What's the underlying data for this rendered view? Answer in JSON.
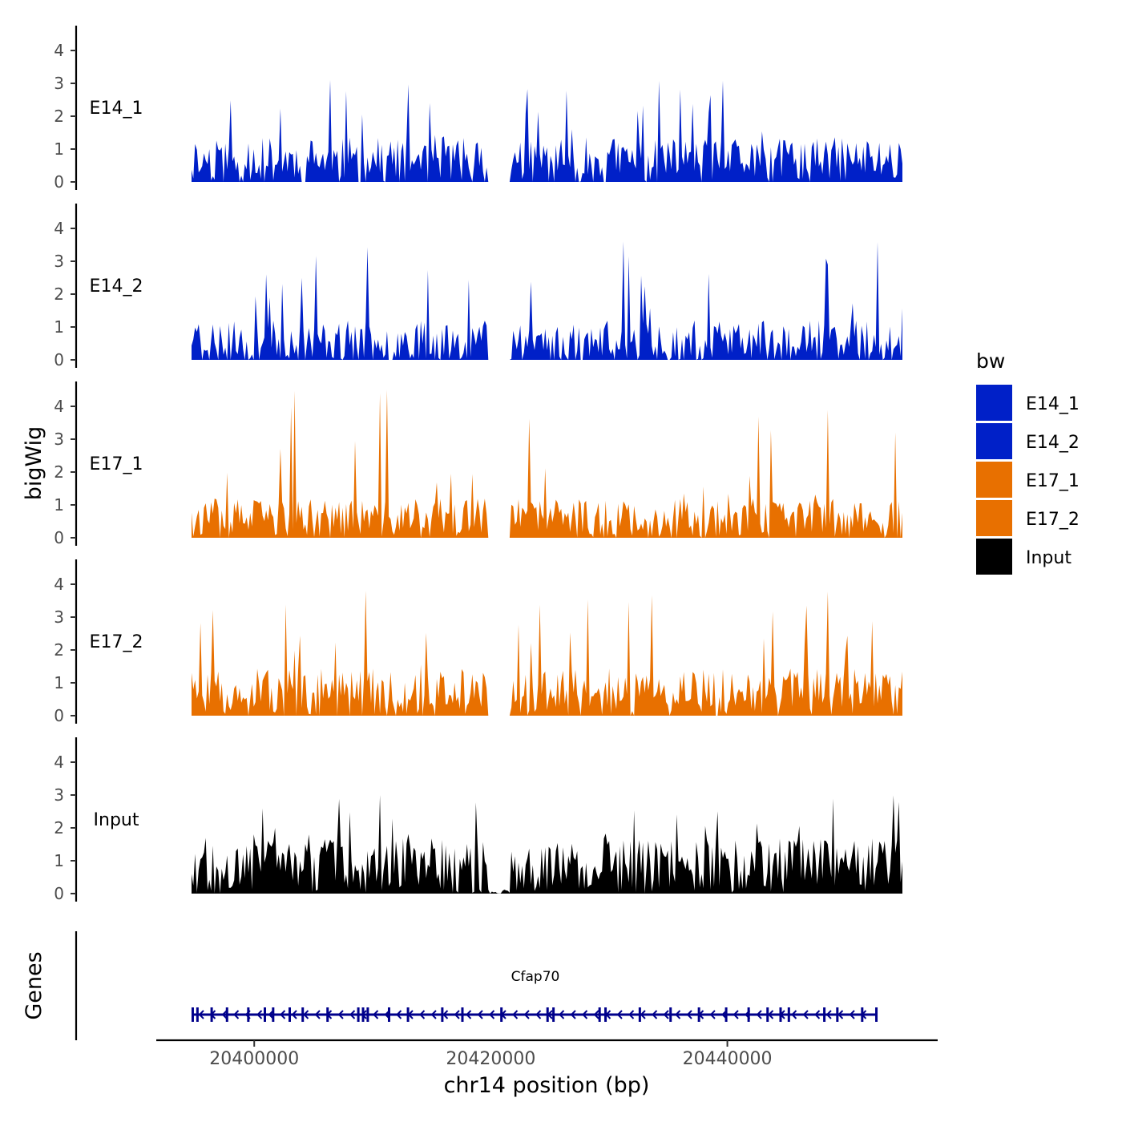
{
  "chart_data": {
    "type": "area",
    "y_axis_title": "bigWig",
    "genes_axis_title": "Genes",
    "x_axis_title": "chr14 position (bp)",
    "x_range": [
      20394700,
      20454800
    ],
    "x_ticks": [
      {
        "value": 20400000,
        "label": "20400000"
      },
      {
        "value": 20440000,
        "label": "20440000"
      }
    ],
    "x_tick_label_only": [
      {
        "value": 20420000,
        "label": "20420000"
      }
    ],
    "y_range": [
      0,
      4.6
    ],
    "y_ticks": [
      "0",
      "1",
      "2",
      "3",
      "4"
    ],
    "legend": {
      "title": "bw",
      "entries": [
        {
          "label": "E14_1",
          "color": "#0020c8"
        },
        {
          "label": "E14_2",
          "color": "#0020c8"
        },
        {
          "label": "E17_1",
          "color": "#e87000"
        },
        {
          "label": "E17_2",
          "color": "#e87000"
        },
        {
          "label": "Input",
          "color": "#000000"
        }
      ]
    },
    "tracks": [
      {
        "name": "E14_1",
        "color": "#0020c8",
        "seed": 11,
        "mean": 0.85,
        "max": 3.1,
        "zero": 0.08
      },
      {
        "name": "E14_2",
        "color": "#0020c8",
        "seed": 23,
        "mean": 0.75,
        "max": 3.6,
        "zero": 0.1
      },
      {
        "name": "E17_1",
        "color": "#e87000",
        "seed": 37,
        "mean": 0.75,
        "max": 4.5,
        "zero": 0.04
      },
      {
        "name": "E17_2",
        "color": "#e87000",
        "seed": 51,
        "mean": 0.9,
        "max": 3.8,
        "zero": 0.05
      },
      {
        "name": "Input",
        "color": "#000000",
        "seed": 67,
        "mean": 1.05,
        "max": 3.0,
        "zero": 0.0
      }
    ],
    "gap_region": [
      20420000,
      20421000
    ],
    "gene": {
      "name": "Cfap70",
      "start": 20394700,
      "end": 20452600,
      "strand": "-",
      "color": "#00008b",
      "exons": [
        20394800,
        20395200,
        20396400,
        20397700,
        20399500,
        20400900,
        20401600,
        20403000,
        20404100,
        20406200,
        20408800,
        20409200,
        20409600,
        20411400,
        20413000,
        20415900,
        20417600,
        20420900,
        20424800,
        20425300,
        20429200,
        20429700,
        20432600,
        20435200,
        20437600,
        20439900,
        20441800,
        20443400,
        20444500,
        20445200,
        20448200,
        20449300,
        20451400,
        20452600
      ]
    }
  }
}
